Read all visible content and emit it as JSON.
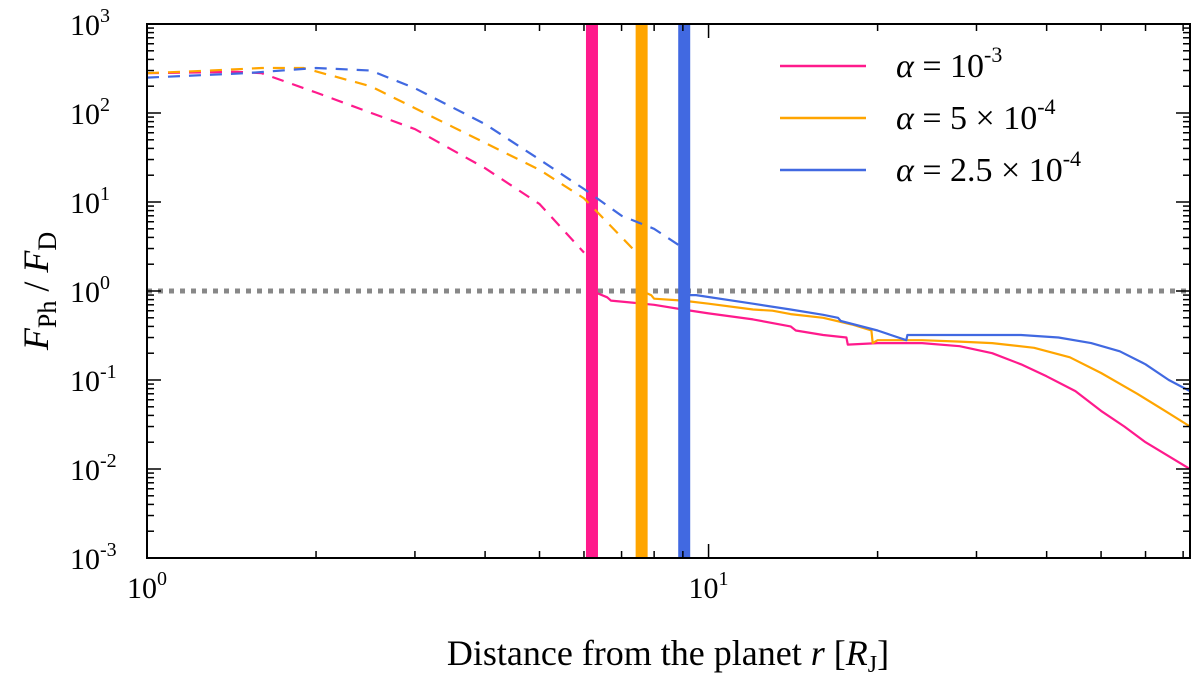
{
  "chart_data": {
    "type": "line",
    "xscale": "log",
    "yscale": "log",
    "xlim": [
      1,
      72
    ],
    "ylim": [
      0.001,
      1000
    ],
    "xlabel": {
      "main": "Distance from the planet ",
      "var": "r",
      "open": " [",
      "sym": "R",
      "sub": "J",
      "close": "]"
    },
    "ylabel": {
      "num": "F",
      "num_sub": "Ph",
      "sep": " / ",
      "den": "F",
      "den_sub": "D"
    },
    "x_ticks": [
      {
        "value": 1,
        "base": "10",
        "exp": "0"
      },
      {
        "value": 10,
        "base": "10",
        "exp": "1"
      }
    ],
    "y_ticks": [
      {
        "value": 0.001,
        "base": "10",
        "exp": "-3"
      },
      {
        "value": 0.01,
        "base": "10",
        "exp": "-2"
      },
      {
        "value": 0.1,
        "base": "10",
        "exp": "-1"
      },
      {
        "value": 1,
        "base": "10",
        "exp": "0"
      },
      {
        "value": 10,
        "base": "10",
        "exp": "1"
      },
      {
        "value": 100,
        "base": "10",
        "exp": "2"
      },
      {
        "value": 1000,
        "base": "10",
        "exp": "3"
      }
    ],
    "reference_line": {
      "y": 1,
      "style": "dotted",
      "color": "#888888"
    },
    "series": [
      {
        "name": "alpha = 10^-3",
        "legend": {
          "sym": "α",
          "eq": " = ",
          "mant": "",
          "times": "",
          "base": "10",
          "exp": "-3"
        },
        "color": "#ff1a8c",
        "boundary_x": 6.2,
        "dashed": [
          [
            1.0,
            280
          ],
          [
            1.2,
            285
          ],
          [
            1.45,
            290
          ],
          [
            1.6,
            280
          ],
          [
            2.0,
            170
          ],
          [
            3.0,
            66
          ],
          [
            4.0,
            24
          ],
          [
            5.0,
            9.5
          ],
          [
            6.0,
            2.7
          ]
        ],
        "solid": [
          [
            6.2,
            1.0
          ],
          [
            6.6,
            0.85
          ],
          [
            6.7,
            0.78
          ],
          [
            7.0,
            0.76
          ],
          [
            8.0,
            0.7
          ],
          [
            9.0,
            0.62
          ],
          [
            10,
            0.56
          ],
          [
            12,
            0.48
          ],
          [
            14,
            0.4
          ],
          [
            14.3,
            0.36
          ],
          [
            16,
            0.32
          ],
          [
            17.6,
            0.3
          ],
          [
            17.7,
            0.25
          ],
          [
            20,
            0.26
          ],
          [
            24,
            0.26
          ],
          [
            28,
            0.24
          ],
          [
            32,
            0.2
          ],
          [
            36,
            0.15
          ],
          [
            40,
            0.11
          ],
          [
            45,
            0.075
          ],
          [
            50,
            0.045
          ],
          [
            55,
            0.03
          ],
          [
            60,
            0.02
          ],
          [
            72,
            0.01
          ]
        ]
      },
      {
        "name": "alpha = 5 x 10^-4",
        "legend": {
          "sym": "α",
          "eq": " = ",
          "mant": "5",
          "times": " × ",
          "base": "10",
          "exp": "-4"
        },
        "color": "#ffa500",
        "boundary_x": 7.6,
        "dashed": [
          [
            1.0,
            280
          ],
          [
            1.3,
            300
          ],
          [
            1.6,
            320
          ],
          [
            1.9,
            320
          ],
          [
            2.5,
            200
          ],
          [
            3.5,
            70
          ],
          [
            5.0,
            23
          ],
          [
            6.0,
            11
          ],
          [
            7.4,
            2.8
          ]
        ],
        "solid": [
          [
            7.6,
            1.0
          ],
          [
            7.9,
            0.9
          ],
          [
            8.0,
            0.82
          ],
          [
            9.0,
            0.78
          ],
          [
            10,
            0.72
          ],
          [
            12,
            0.62
          ],
          [
            13,
            0.6
          ],
          [
            14,
            0.55
          ],
          [
            16,
            0.5
          ],
          [
            18,
            0.42
          ],
          [
            19.5,
            0.36
          ],
          [
            19.6,
            0.26
          ],
          [
            20,
            0.28
          ],
          [
            24,
            0.28
          ],
          [
            28,
            0.27
          ],
          [
            32,
            0.26
          ],
          [
            38,
            0.23
          ],
          [
            44,
            0.18
          ],
          [
            50,
            0.12
          ],
          [
            58,
            0.07
          ],
          [
            65,
            0.045
          ],
          [
            72,
            0.03
          ]
        ]
      },
      {
        "name": "alpha = 2.5 x 10^-4",
        "legend": {
          "sym": "α",
          "eq": " = ",
          "mant": "2.5",
          "times": " × ",
          "base": "10",
          "exp": "-4"
        },
        "color": "#4169e1",
        "boundary_x": 9.05,
        "dashed": [
          [
            1.0,
            250
          ],
          [
            1.5,
            280
          ],
          [
            2.0,
            320
          ],
          [
            2.5,
            300
          ],
          [
            3.0,
            190
          ],
          [
            4.0,
            75
          ],
          [
            5.0,
            30
          ],
          [
            6.0,
            14
          ],
          [
            7.0,
            7
          ],
          [
            8.0,
            5
          ],
          [
            8.9,
            3.2
          ]
        ],
        "solid": [
          [
            9.05,
            0.9
          ],
          [
            9.5,
            0.9
          ],
          [
            12,
            0.72
          ],
          [
            14,
            0.62
          ],
          [
            16,
            0.54
          ],
          [
            17,
            0.5
          ],
          [
            17.2,
            0.46
          ],
          [
            20,
            0.36
          ],
          [
            22.5,
            0.28
          ],
          [
            22.6,
            0.32
          ],
          [
            28,
            0.32
          ],
          [
            36,
            0.32
          ],
          [
            42,
            0.3
          ],
          [
            48,
            0.26
          ],
          [
            54,
            0.21
          ],
          [
            60,
            0.15
          ],
          [
            66,
            0.1
          ],
          [
            72,
            0.075
          ]
        ]
      }
    ]
  }
}
